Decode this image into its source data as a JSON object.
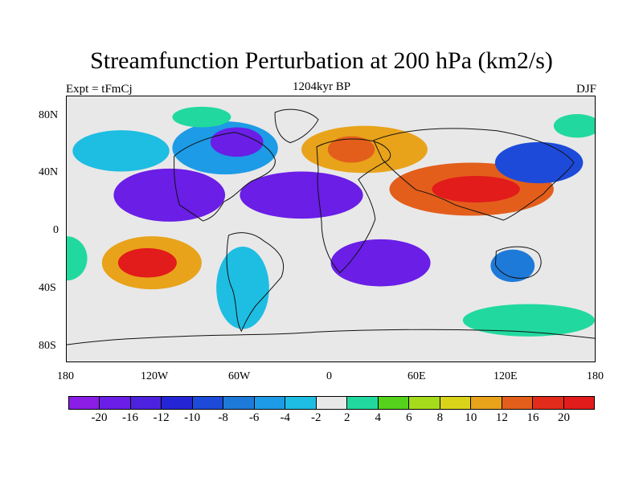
{
  "header": {
    "title": "Streamfunction Perturbation at 200 hPa (km2/s)",
    "left": "Expt = tFmCj",
    "center": "1204kyr BP",
    "right": "DJF"
  },
  "map": {
    "lat_labels": [
      "80N",
      "40N",
      "0",
      "40S",
      "80S"
    ],
    "lon_labels": [
      "180",
      "120W",
      "60W",
      "0",
      "60E",
      "120E",
      "180"
    ],
    "background_color": "#e8e8e8"
  },
  "legend": {
    "colors": [
      "#8a1de6",
      "#6a1ee6",
      "#4d22de",
      "#2426d6",
      "#1d4ad9",
      "#1e7ad9",
      "#1d9be6",
      "#1ebde2",
      "#e8e8e8",
      "#21d99e",
      "#55d21b",
      "#a6db1b",
      "#d9d41b",
      "#e8a31b",
      "#e35e1b",
      "#e32b1b",
      "#e21b1b"
    ],
    "labels": [
      "-20",
      "-16",
      "-12",
      "-10",
      "-8",
      "-6",
      "-4",
      "-2",
      "2",
      "4",
      "6",
      "8",
      "10",
      "12",
      "16",
      "20"
    ]
  },
  "fields": [
    {
      "name": "n-pacific-negative",
      "lon": -143,
      "lat": 53,
      "rx": 33,
      "ry": 14,
      "color": "#1ebde2"
    },
    {
      "name": "n-america-negative",
      "lon": -72,
      "lat": 55,
      "rx": 36,
      "ry": 18,
      "color": "#1d9be6"
    },
    {
      "name": "n-america-core",
      "lon": -64,
      "lat": 59,
      "rx": 18,
      "ry": 10,
      "color": "#6a1ee6"
    },
    {
      "name": "n-atlantic-positive",
      "lon": -88,
      "lat": 76,
      "rx": 20,
      "ry": 7,
      "color": "#21d99e"
    },
    {
      "name": "europe-positive",
      "lon": 23,
      "lat": 54,
      "rx": 43,
      "ry": 16,
      "color": "#e8a31b"
    },
    {
      "name": "europe-core",
      "lon": 14,
      "lat": 54,
      "rx": 16,
      "ry": 9,
      "color": "#e35e1b"
    },
    {
      "name": "asia-positive",
      "lon": 96,
      "lat": 27,
      "rx": 56,
      "ry": 18,
      "color": "#e35e1b"
    },
    {
      "name": "asia-core",
      "lon": 99,
      "lat": 27,
      "rx": 30,
      "ry": 9,
      "color": "#e21b1b"
    },
    {
      "name": "nw-pacific-negative",
      "lon": 142,
      "lat": 45,
      "rx": 30,
      "ry": 14,
      "color": "#1d4ad9"
    },
    {
      "name": "tropical-pacific-negative",
      "lon": -110,
      "lat": 23,
      "rx": 38,
      "ry": 18,
      "color": "#6a1ee6"
    },
    {
      "name": "tropical-atlantic-negative",
      "lon": -20,
      "lat": 23,
      "rx": 42,
      "ry": 16,
      "color": "#6a1ee6"
    },
    {
      "name": "south-pacific-positive",
      "lon": -122,
      "lat": -23,
      "rx": 34,
      "ry": 18,
      "color": "#e8a31b"
    },
    {
      "name": "south-pacific-core",
      "lon": -125,
      "lat": -23,
      "rx": 20,
      "ry": 10,
      "color": "#e21b1b"
    },
    {
      "name": "south-atlantic-negative",
      "lon": 34,
      "lat": -23,
      "rx": 34,
      "ry": 16,
      "color": "#6a1ee6"
    },
    {
      "name": "south-america-negative",
      "lon": -60,
      "lat": -40,
      "rx": 18,
      "ry": 28,
      "color": "#1ebde2"
    },
    {
      "name": "indian-ocean-negative",
      "lon": 124,
      "lat": -25,
      "rx": 15,
      "ry": 11,
      "color": "#1e7ad9"
    },
    {
      "name": "southern-ocean-positive",
      "lon": 135,
      "lat": -62,
      "rx": 45,
      "ry": 11,
      "color": "#21d99e"
    },
    {
      "name": "western-pacific-positive",
      "lon": -180,
      "lat": -20,
      "rx": 14,
      "ry": 15,
      "color": "#21d99e"
    },
    {
      "name": "east-pacific-positive",
      "lon": 168,
      "lat": 70,
      "rx": 16,
      "ry": 8,
      "color": "#21d99e"
    }
  ]
}
